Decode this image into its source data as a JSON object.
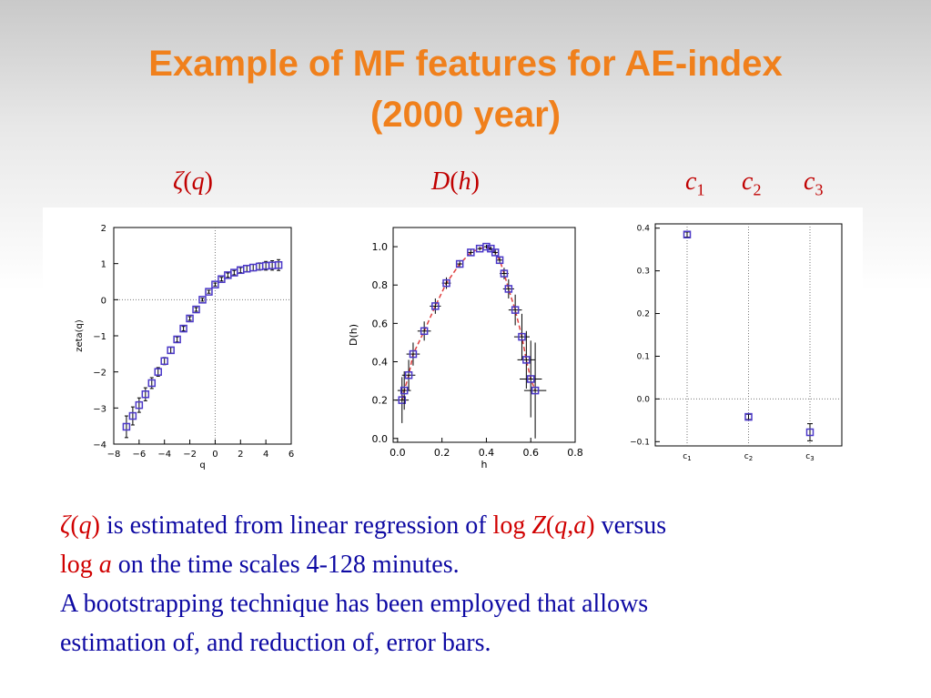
{
  "slide": {
    "title_line1": "Example of MF features for AE-index",
    "title_line2": "(2000 year)"
  },
  "labels": {
    "zeta": {
      "sym": "ζ",
      "open": "(",
      "var": "q",
      "close": ")"
    },
    "dh": {
      "sym": "D",
      "open": "(",
      "var": "h",
      "close": ")"
    },
    "c1": {
      "base": "c",
      "sub": "1"
    },
    "c2": {
      "base": "c",
      "sub": "2"
    },
    "c3": {
      "base": "c",
      "sub": "3"
    }
  },
  "body": {
    "zeta": "ζ",
    "q": "q",
    "lp": "(",
    "rp": ")",
    "text1": " is estimated from linear regression of ",
    "log1": "log ",
    "Z": "Z",
    "qa_q": "q",
    "comma": ",",
    "qa_a": "a",
    "text2": " versus",
    "log2": "log ",
    "a": "a",
    "text3": " on the time scales 4-128 minutes.",
    "text4": "A bootstrapping technique has been employed that allows",
    "text5": "estimation of, and reduction of, error bars."
  },
  "colors": {
    "title": "#f0801c",
    "body_text": "#0e0aa3",
    "highlight": "#d00000",
    "marker": "#4b38c8",
    "fit_line": "#e04040"
  },
  "chart_data": [
    {
      "type": "scatter",
      "xlabel": "q",
      "ylabel": "zeta(q)",
      "xlim": [
        -8,
        6
      ],
      "ylim": [
        -4,
        2
      ],
      "xticks": [
        -8,
        -6,
        -4,
        -2,
        0,
        2,
        4,
        6
      ],
      "yticks": [
        -4,
        -3,
        -2,
        -1,
        0,
        1,
        2
      ],
      "grid": "dotted reference lines at x=0 and y=0",
      "x": [
        -7,
        -6.5,
        -6,
        -5.5,
        -5,
        -4.5,
        -4,
        -3.5,
        -3,
        -2.5,
        -2,
        -1.5,
        -1,
        -0.5,
        0,
        0.5,
        1,
        1.5,
        2,
        2.5,
        3,
        3.5,
        4,
        4.5,
        5
      ],
      "y": [
        -3.52,
        -3.22,
        -2.92,
        -2.62,
        -2.31,
        -2.0,
        -1.7,
        -1.4,
        -1.1,
        -0.8,
        -0.52,
        -0.27,
        0.0,
        0.22,
        0.42,
        0.57,
        0.68,
        0.75,
        0.82,
        0.86,
        0.89,
        0.92,
        0.94,
        0.95,
        0.96
      ],
      "err": [
        0.3,
        0.25,
        0.2,
        0.18,
        0.15,
        0.12,
        0.1,
        0.08,
        0.07,
        0.06,
        0.05,
        0.05,
        0.04,
        0.04,
        0.04,
        0.05,
        0.06,
        0.06,
        0.07,
        0.08,
        0.09,
        0.1,
        0.12,
        0.13,
        0.15
      ]
    },
    {
      "type": "scatter",
      "xlabel": "h",
      "ylabel": "D(h)",
      "xlim": [
        -0.02,
        0.8
      ],
      "ylim": [
        -0.02,
        1.1
      ],
      "xticks": [
        0.0,
        0.2,
        0.4,
        0.6,
        0.8
      ],
      "yticks": [
        0.0,
        0.2,
        0.4,
        0.6,
        0.8,
        1.0
      ],
      "x": [
        0.02,
        0.03,
        0.05,
        0.07,
        0.12,
        0.17,
        0.22,
        0.28,
        0.33,
        0.37,
        0.4,
        0.42,
        0.44,
        0.46,
        0.48,
        0.5,
        0.53,
        0.56,
        0.58,
        0.6,
        0.62
      ],
      "y": [
        0.2,
        0.25,
        0.33,
        0.44,
        0.56,
        0.69,
        0.81,
        0.91,
        0.97,
        0.99,
        1.0,
        0.99,
        0.97,
        0.93,
        0.86,
        0.78,
        0.67,
        0.53,
        0.41,
        0.31,
        0.25
      ],
      "xerr": [
        0.03,
        0.03,
        0.03,
        0.03,
        0.03,
        0.025,
        0.02,
        0.015,
        0.012,
        0.01,
        0.01,
        0.01,
        0.012,
        0.015,
        0.02,
        0.025,
        0.03,
        0.035,
        0.04,
        0.05,
        0.05
      ],
      "yerr": [
        0.12,
        0.1,
        0.08,
        0.06,
        0.05,
        0.04,
        0.03,
        0.02,
        0.015,
        0.01,
        0.01,
        0.01,
        0.015,
        0.02,
        0.03,
        0.05,
        0.08,
        0.12,
        0.15,
        0.2,
        0.25
      ],
      "fit": "dashed red curve through points"
    },
    {
      "type": "scatter",
      "categories": [
        "c1",
        "c2",
        "c3"
      ],
      "ylim": [
        -0.11,
        0.41
      ],
      "yticks": [
        -0.1,
        0.0,
        0.1,
        0.2,
        0.3,
        0.4
      ],
      "grid": "dotted vertical lines at each category, dotted horizontal line at 0.0",
      "values": [
        0.385,
        -0.042,
        -0.078
      ],
      "err": [
        0.006,
        0.006,
        0.02
      ]
    }
  ]
}
